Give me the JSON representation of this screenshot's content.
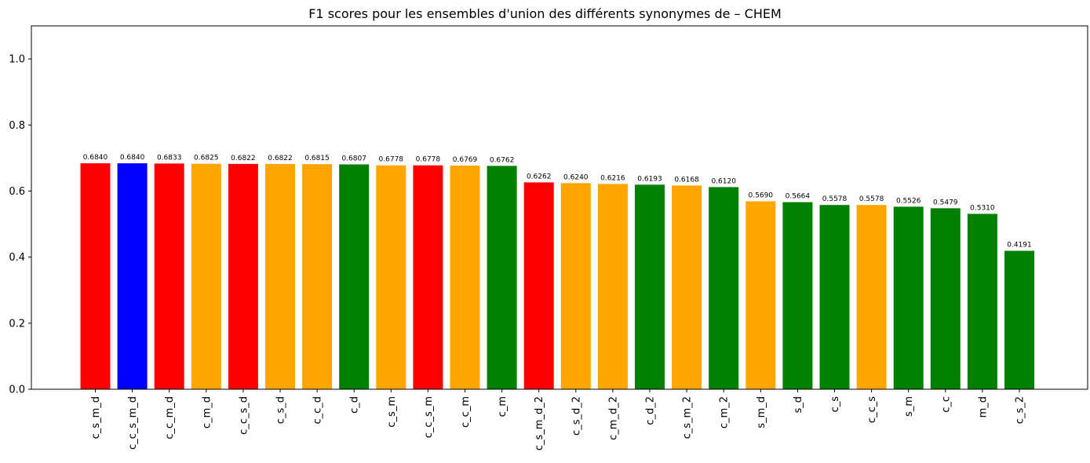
{
  "chart_data": {
    "type": "bar",
    "title": "F1 scores pour les ensembles d'union des différents synonymes de – CHEM",
    "xlabel": "",
    "ylabel": "",
    "ylim": [
      0,
      1.1
    ],
    "yticks": [
      "0.0",
      "0.2",
      "0.4",
      "0.6",
      "0.8",
      "1.0"
    ],
    "categories": [
      "c_s_m_d",
      "c_c_s_m_d",
      "c_c_m_d",
      "c_m_d",
      "c_c_s_d",
      "c_s_d",
      "c_c_d",
      "c_d",
      "c_s_m",
      "c_c_s_m",
      "c_c_m",
      "c_m",
      "c_s_m_d_2",
      "c_s_d_2",
      "c_m_d_2",
      "c_d_2",
      "c_s_m_2",
      "c_m_2",
      "s_m_d",
      "s_d",
      "c_s",
      "c_c_s",
      "s_m",
      "c_c",
      "m_d",
      "c_s_2"
    ],
    "values": [
      0.684,
      0.684,
      0.6833,
      0.6825,
      0.6822,
      0.6822,
      0.6815,
      0.6807,
      0.6778,
      0.6778,
      0.6769,
      0.6762,
      0.6262,
      0.624,
      0.6216,
      0.6193,
      0.6168,
      0.612,
      0.569,
      0.5664,
      0.5578,
      0.5578,
      0.5526,
      0.5479,
      0.531,
      0.4191
    ],
    "value_labels": [
      "0.6840",
      "0.6840",
      "0.6833",
      "0.6825",
      "0.6822",
      "0.6822",
      "0.6815",
      "0.6807",
      "0.6778",
      "0.6778",
      "0.6769",
      "0.6762",
      "0.6262",
      "0.6240",
      "0.6216",
      "0.6193",
      "0.6168",
      "0.6120",
      "0.5690",
      "0.5664",
      "0.5578",
      "0.5578",
      "0.5526",
      "0.5479",
      "0.5310",
      "0.4191"
    ],
    "colors": [
      "#ff0000",
      "#0000ff",
      "#ff0000",
      "#ffa500",
      "#ff0000",
      "#ffa500",
      "#ffa500",
      "#008000",
      "#ffa500",
      "#ff0000",
      "#ffa500",
      "#008000",
      "#ff0000",
      "#ffa500",
      "#ffa500",
      "#008000",
      "#ffa500",
      "#008000",
      "#ffa500",
      "#008000",
      "#008000",
      "#ffa500",
      "#008000",
      "#008000",
      "#008000",
      "#008000"
    ]
  }
}
